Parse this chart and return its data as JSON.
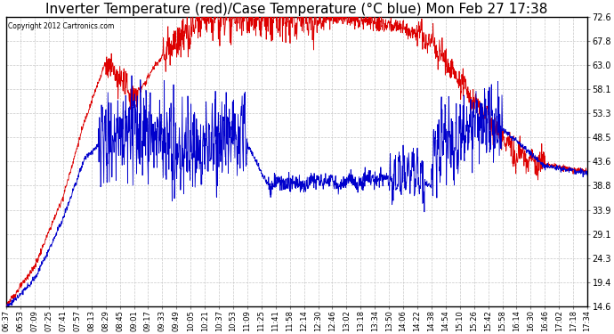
{
  "title": "Inverter Temperature (red)/Case Temperature (°C blue) Mon Feb 27 17:38",
  "copyright": "Copyright 2012 Cartronics.com",
  "yticks": [
    14.6,
    19.4,
    24.3,
    29.1,
    33.9,
    38.8,
    43.6,
    48.5,
    53.3,
    58.1,
    63.0,
    67.8,
    72.6
  ],
  "ylim": [
    14.6,
    72.6
  ],
  "background_color": "#ffffff",
  "grid_color": "#c8c8c8",
  "red_color": "#dd0000",
  "blue_color": "#0000cc",
  "title_fontsize": 11,
  "tick_fontsize": 7,
  "xtick_labels": [
    "06:37",
    "06:53",
    "07:09",
    "07:25",
    "07:41",
    "07:57",
    "08:13",
    "08:29",
    "08:45",
    "09:01",
    "09:17",
    "09:33",
    "09:49",
    "10:05",
    "10:21",
    "10:37",
    "10:53",
    "11:09",
    "11:25",
    "11:41",
    "11:58",
    "12:14",
    "12:30",
    "12:46",
    "13:02",
    "13:18",
    "13:34",
    "13:50",
    "14:06",
    "14:22",
    "14:38",
    "14:54",
    "15:10",
    "15:26",
    "15:42",
    "15:58",
    "16:14",
    "16:30",
    "16:46",
    "17:02",
    "17:18",
    "17:34"
  ]
}
